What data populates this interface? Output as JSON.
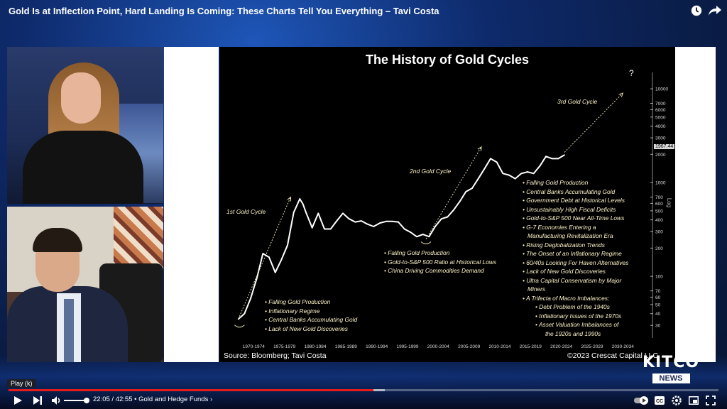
{
  "video": {
    "title": "Gold Is at Inflection Point, Hard Landing Is Coming: These Charts Tell You Everything – Tavi Costa",
    "time_current": "22:05",
    "time_total": "42:55",
    "chapter": "• Gold and Hedge Funds ›",
    "tooltip": "Play (k)",
    "progress_fraction": 0.514,
    "buffered_fraction": 0.53,
    "watermark_main": "KITCO",
    "watermark_sub": "NEWS"
  },
  "icons": [
    "clock-icon",
    "share-icon",
    "play-icon",
    "next-icon",
    "volume-icon",
    "autoplay-toggle",
    "captions-icon",
    "settings-icon",
    "miniplayer-icon",
    "fullscreen-icon"
  ],
  "chart_data": {
    "type": "line",
    "title": "The History of Gold Cycles",
    "yscale": "log",
    "ylim": [
      22,
      13000
    ],
    "ytick_labels": [
      "10000",
      "7000",
      "6000",
      "5000",
      "4000",
      "3000",
      "2000",
      "1000",
      "700",
      "600",
      "500",
      "400",
      "300",
      "200",
      "100",
      "70",
      "60",
      "50",
      "40",
      "30"
    ],
    "xtick_labels": [
      "1970-1974",
      "1975-1979",
      "1980-1984",
      "1985-1989",
      "1990-1994",
      "1995-1999",
      "2000-2004",
      "2005-2009",
      "2010-2014",
      "2015-2019",
      "2020-2024",
      "2025-2029",
      "2030-2034"
    ],
    "xlim": [
      1969,
      2035
    ],
    "last_value_label": "1967.44",
    "axis_side_label": "Log",
    "series": [
      {
        "values": [
          [
            1970.0,
            35
          ],
          [
            1971.0,
            40
          ],
          [
            1972.0,
            58
          ],
          [
            1973.0,
            95
          ],
          [
            1974.0,
            175
          ],
          [
            1975.0,
            160
          ],
          [
            1976.0,
            110
          ],
          [
            1977.0,
            150
          ],
          [
            1978.0,
            215
          ],
          [
            1979.0,
            480
          ],
          [
            1980.0,
            670
          ],
          [
            1980.5,
            590
          ],
          [
            1981.0,
            480
          ],
          [
            1982.0,
            330
          ],
          [
            1983.0,
            470
          ],
          [
            1984.0,
            320
          ],
          [
            1985.0,
            320
          ],
          [
            1986.0,
            390
          ],
          [
            1987.0,
            470
          ],
          [
            1988.0,
            410
          ],
          [
            1989.0,
            380
          ],
          [
            1990.0,
            390
          ],
          [
            1991.0,
            360
          ],
          [
            1992.0,
            340
          ],
          [
            1993.0,
            370
          ],
          [
            1994.0,
            385
          ],
          [
            1995.0,
            385
          ],
          [
            1996.0,
            380
          ],
          [
            1997.0,
            320
          ],
          [
            1998.0,
            295
          ],
          [
            1999.0,
            265
          ],
          [
            2000.0,
            280
          ],
          [
            2001.0,
            265
          ],
          [
            2002.0,
            340
          ],
          [
            2003.0,
            410
          ],
          [
            2004.0,
            430
          ],
          [
            2005.0,
            510
          ],
          [
            2006.0,
            630
          ],
          [
            2007.0,
            800
          ],
          [
            2008.0,
            870
          ],
          [
            2009.0,
            1100
          ],
          [
            2010.0,
            1400
          ],
          [
            2011.0,
            1800
          ],
          [
            2012.0,
            1650
          ],
          [
            2013.0,
            1250
          ],
          [
            2014.0,
            1200
          ],
          [
            2015.0,
            1100
          ],
          [
            2016.0,
            1250
          ],
          [
            2017.0,
            1300
          ],
          [
            2018.0,
            1250
          ],
          [
            2019.0,
            1500
          ],
          [
            2020.0,
            1900
          ],
          [
            2021.0,
            1800
          ],
          [
            2022.0,
            1800
          ],
          [
            2023.0,
            1967.44
          ]
        ]
      }
    ],
    "cycles": [
      {
        "label": "1st Gold Cycle"
      },
      {
        "label": "2nd Gold Cycle"
      },
      {
        "label": "3rd Gold Cycle"
      }
    ],
    "question_mark": "?",
    "notes_cycle1": [
      "Falling Gold Production",
      "Inflationary Regime",
      "Central Banks Accumulating Gold",
      "Lack of New Gold Discoveries"
    ],
    "notes_cycle2": [
      "Falling Gold Production",
      "Gold-to-S&P 500 Ratio at Historical Lows",
      "China Driving Commodities Demand"
    ],
    "notes_cycle3": [
      "Falling Gold Production",
      "Central Banks Accumulating Gold",
      "Government Debt at Historical Levels",
      "Unsustainably High Fiscal Deficits",
      "Gold-to-S&P 500 Near All-Time Lows",
      "G-7 Economies Entering a",
      "Manufacturing Revitalization Era",
      "Rising Deglobalization Trends",
      "The Onset of an Inflationary Regime",
      "60/40s Looking For Haven Alternatives",
      "Lack of New Gold Discoveries",
      "Ultra Capital Conservatism by Major",
      "Miners",
      "A Trifecta of Macro Imbalances:",
      "Debt Problem of the 1940s",
      "Inflationary Issues of the 1970s",
      "Asset Valuation Imbalances of",
      "the 1920s and 1990s"
    ],
    "source": "Source: Bloomberg; Tavi Costa",
    "copyright": "©2023 Crescat Capital LLC"
  }
}
